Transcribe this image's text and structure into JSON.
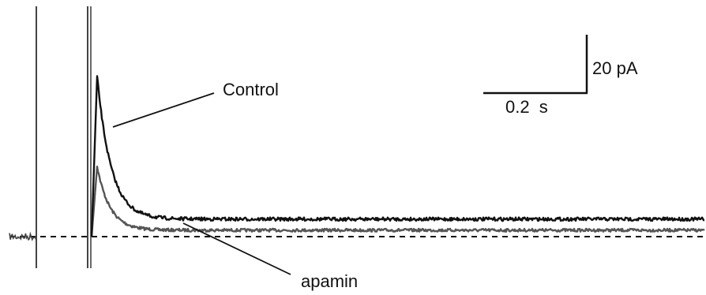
{
  "chart_data": {
    "type": "line",
    "title": "",
    "xlabel": "",
    "ylabel": "",
    "grid": false,
    "legend": "none",
    "x_units": "s",
    "y_units": "pA",
    "xlim": [
      -0.55,
      2.45
    ],
    "ylim": [
      -5,
      62
    ],
    "series": [
      {
        "name": "Control",
        "color": "#111111",
        "peak_time": 0.03,
        "peak_amplitude": 55,
        "decay_tau": 0.06,
        "plateau": 6,
        "noise": 1.6
      },
      {
        "name": "apamin",
        "color": "#555555",
        "peak_time": 0.03,
        "peak_amplitude": 24,
        "decay_tau": 0.055,
        "plateau": 2.2,
        "noise": 1.4
      }
    ],
    "baseline": 0,
    "stimulus_artifacts": [
      -0.22,
      0.0
    ],
    "scale_bar": {
      "time_label": "0.2  s",
      "time_value": 0.2,
      "amplitude_label": "20 pA",
      "amplitude_value": 20
    },
    "annotations": {
      "control_label": "Control",
      "apamin_label": "apamin"
    }
  }
}
